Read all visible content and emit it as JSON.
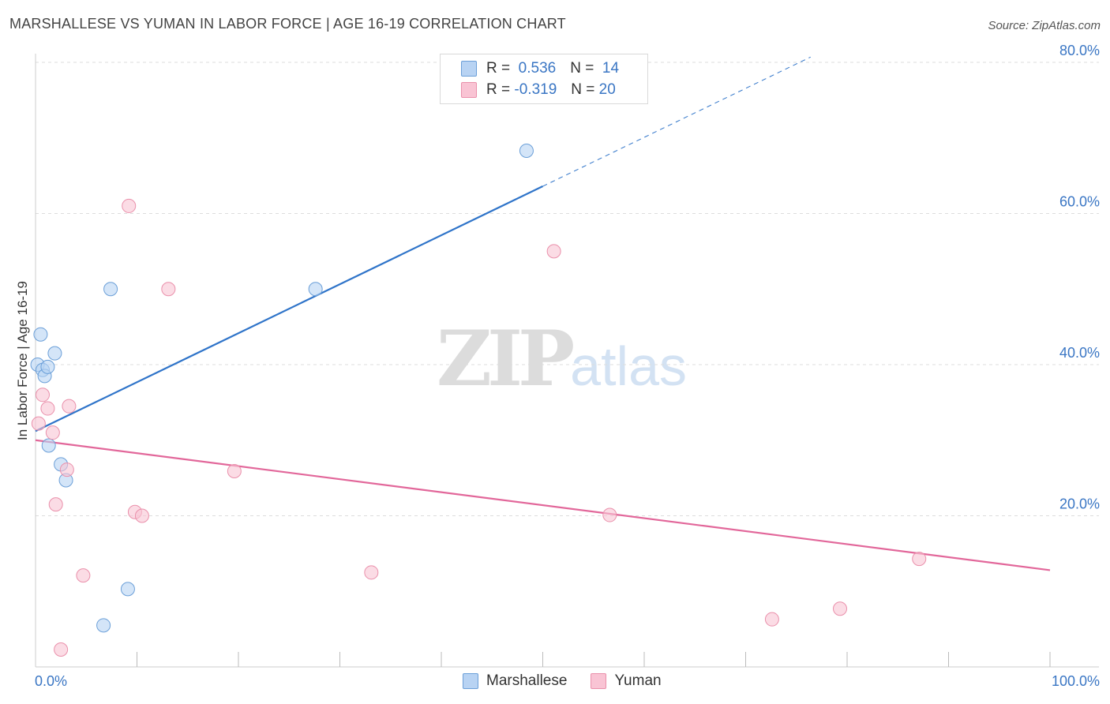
{
  "title": "MARSHALLESE VS YUMAN IN LABOR FORCE | AGE 16-19 CORRELATION CHART",
  "source": "Source: ZipAtlas.com",
  "watermark": {
    "zip": "ZIP",
    "atlas": "atlas"
  },
  "legend": {
    "rows": [
      {
        "r_label": "R =",
        "r_value": "0.536",
        "n_label": "N =",
        "n_value": "14"
      },
      {
        "r_label": "R =",
        "r_value": "-0.319",
        "n_label": "N =",
        "n_value": "20"
      }
    ]
  },
  "colors": {
    "marshallese_fill": "#b8d3f3",
    "marshallese_stroke": "#6b9fd8",
    "marshallese_line": "#2f74c9",
    "yuman_fill": "#f9c4d4",
    "yuman_stroke": "#ea90ab",
    "yuman_line": "#e2679a",
    "grid": "#dddddd",
    "axis_text": "#3a76c4"
  },
  "chart_data": {
    "type": "scatter",
    "title": "MARSHALLESE VS YUMAN IN LABOR FORCE | AGE 16-19 CORRELATION CHART",
    "xlabel": "",
    "ylabel": "In Labor Force | Age 16-19",
    "xlim": [
      0,
      100
    ],
    "ylim": [
      0,
      80
    ],
    "x_tick_labels": [
      "0.0%",
      "100.0%"
    ],
    "y_ticks": [
      20,
      40,
      60,
      80
    ],
    "y_tick_labels": [
      "20.0%",
      "40.0%",
      "60.0%",
      "80.0%"
    ],
    "series": [
      {
        "name": "Marshallese",
        "r": 0.536,
        "n": 14,
        "points": [
          [
            0.2,
            40.0
          ],
          [
            0.5,
            44.0
          ],
          [
            0.7,
            39.3
          ],
          [
            0.9,
            38.5
          ],
          [
            1.2,
            39.7
          ],
          [
            1.3,
            29.3
          ],
          [
            1.9,
            41.5
          ],
          [
            2.5,
            26.8
          ],
          [
            3.0,
            24.7
          ],
          [
            6.7,
            5.5
          ],
          [
            7.4,
            50.0
          ],
          [
            9.1,
            10.3
          ],
          [
            27.6,
            50.0
          ],
          [
            48.4,
            68.3
          ]
        ],
        "trend": {
          "x_start": 0.0,
          "y_start": 31.2,
          "x_end": 50.0,
          "y_end": 63.6,
          "dashed_to_x": 76.4,
          "dashed_to_y": 80.7
        }
      },
      {
        "name": "Yuman",
        "r": -0.319,
        "n": 20,
        "points": [
          [
            0.3,
            32.2
          ],
          [
            0.7,
            36.0
          ],
          [
            1.2,
            34.2
          ],
          [
            1.7,
            31.0
          ],
          [
            2.0,
            21.5
          ],
          [
            2.5,
            2.3
          ],
          [
            3.1,
            26.1
          ],
          [
            3.3,
            34.5
          ],
          [
            4.7,
            12.1
          ],
          [
            9.2,
            61.0
          ],
          [
            9.8,
            20.5
          ],
          [
            10.5,
            20.0
          ],
          [
            13.1,
            50.0
          ],
          [
            19.6,
            25.9
          ],
          [
            33.1,
            12.5
          ],
          [
            51.1,
            55.0
          ],
          [
            56.6,
            20.1
          ],
          [
            72.6,
            6.3
          ],
          [
            79.3,
            7.7
          ],
          [
            87.1,
            14.3
          ]
        ],
        "trend": {
          "x_start": 0.0,
          "y_start": 30.0,
          "x_end": 100.0,
          "y_end": 12.8
        }
      }
    ]
  }
}
